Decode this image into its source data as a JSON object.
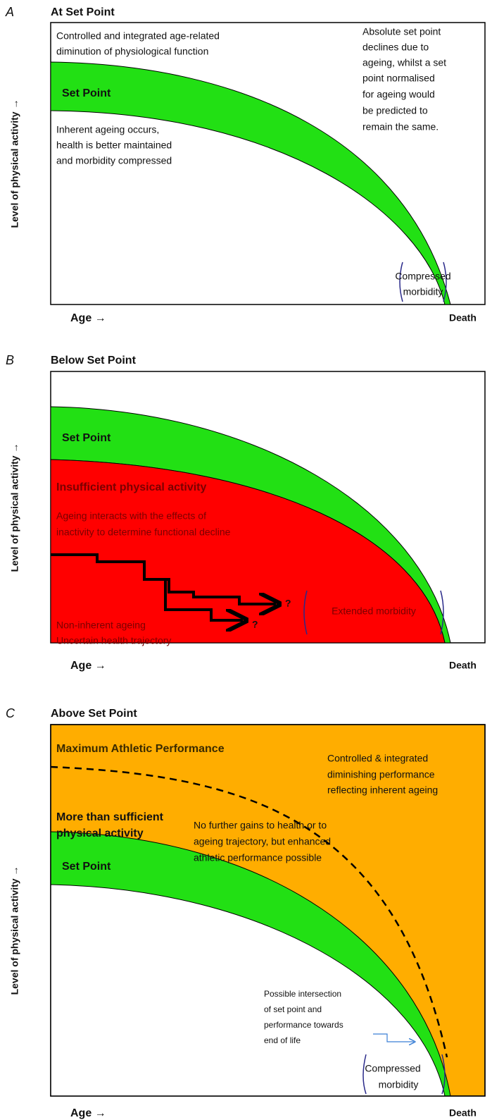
{
  "panels": [
    {
      "letter": "A",
      "title": "At Set Point",
      "y_label": "Level of physical activity →",
      "x_label": "Age →",
      "end_label": "Death",
      "top_note": [
        "Controlled and integrated age-related",
        "diminution of physiological function"
      ],
      "band_label": "Set Point",
      "below_note": [
        "Inherent ageing occurs,",
        "health is better maintained",
        "and morbidity compressed"
      ],
      "right_note": [
        "Absolute set point",
        "declines due to",
        "ageing, whilst a set",
        "point normalised",
        "for ageing would",
        "be predicted to",
        "remain the same."
      ],
      "morbidity": [
        "Compressed",
        "morbidity"
      ]
    },
    {
      "letter": "B",
      "title": "Below Set Point",
      "y_label": "Level of physical activity →",
      "x_label": "Age →",
      "end_label": "Death",
      "band_label": "Set Point",
      "red_label": "Insufficient physical activity",
      "red_note": [
        "Ageing  interacts with the effects of",
        "inactivity to determine functional decline"
      ],
      "bottom_note": [
        "Non-inherent ageing",
        "Uncertain health trajectory"
      ],
      "question_marks": [
        "?",
        "?"
      ],
      "morbidity": "Extended  morbidity"
    },
    {
      "letter": "C",
      "title": "Above  Set Point",
      "y_label": "Level of physical activity →",
      "x_label": "Age →",
      "end_label": "Death",
      "max_label": "Maximum Athletic Performance",
      "right_note": [
        "Controlled & integrated",
        "diminishing performance",
        "reflecting inherent ageing"
      ],
      "more_label": [
        "More than sufficient",
        "physical activity"
      ],
      "gain_note": [
        "No further gains to health or to",
        "ageing trajectory, but enhanced",
        "athletic performance possible"
      ],
      "band_label": "Set Point",
      "intersection_note": [
        "Possible intersection",
        "of set point and",
        "performance towards",
        "end of life"
      ],
      "morbidity": [
        "Compressed",
        "morbidity"
      ]
    }
  ]
}
